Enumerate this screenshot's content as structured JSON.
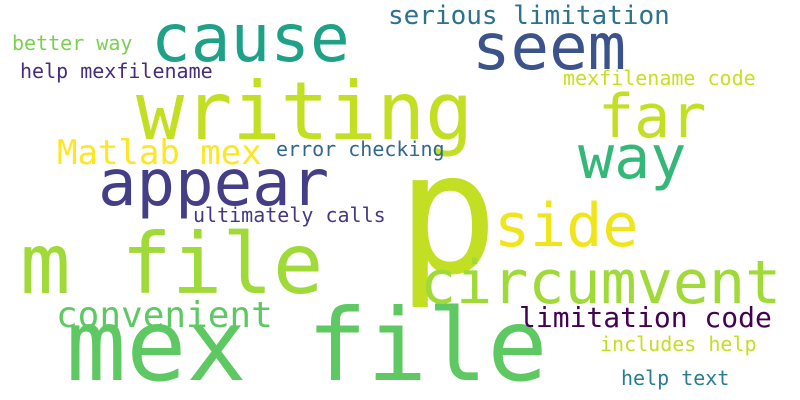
{
  "words": [
    {
      "text": "mex file",
      "color": "#5ec962"
    },
    {
      "text": "p",
      "color": "#c2df23"
    },
    {
      "text": "writing",
      "color": "#c2df23"
    },
    {
      "text": "m file",
      "color": "#a0da39"
    },
    {
      "text": "seem",
      "color": "#3b528b"
    },
    {
      "text": "cause",
      "color": "#1fa187"
    },
    {
      "text": "appear",
      "color": "#433e85"
    },
    {
      "text": "circumvent",
      "color": "#a0da39"
    },
    {
      "text": "far",
      "color": "#c2df23"
    },
    {
      "text": "way",
      "color": "#35b779"
    },
    {
      "text": "side",
      "color": "#f0e51c"
    },
    {
      "text": "convenient",
      "color": "#5ec962"
    },
    {
      "text": "Matlab mex",
      "color": "#fde725"
    },
    {
      "text": "limitation code",
      "color": "#440154"
    },
    {
      "text": "serious limitation",
      "color": "#2c728e"
    },
    {
      "text": "mexfilename code",
      "color": "#c8e020"
    },
    {
      "text": "help mexfilename",
      "color": "#472d7b"
    },
    {
      "text": "ultimately calls",
      "color": "#443a83"
    },
    {
      "text": "error checking",
      "color": "#31688e"
    },
    {
      "text": "includes help",
      "color": "#c2df23"
    },
    {
      "text": "help text",
      "color": "#277f8e"
    },
    {
      "text": "better way",
      "color": "#7ad151"
    }
  ]
}
